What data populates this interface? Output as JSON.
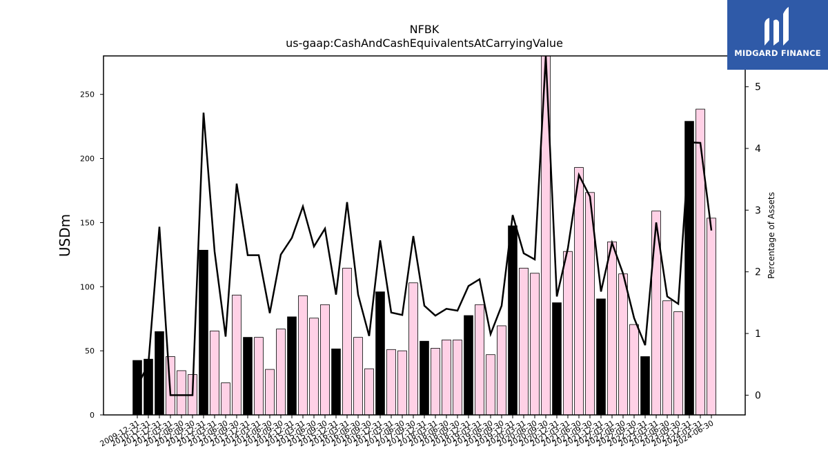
{
  "logo": {
    "text": "MIDGARD FINANCE",
    "color": "#2f5aa8"
  },
  "chart_data": {
    "type": "bar",
    "title": "NFBK",
    "subtitle": "us-gaap:CashAndCashEquivalentsAtCarryingValue",
    "ylabel": "USDm",
    "y2label": "Percentage of Assets",
    "ylim": [
      0,
      280
    ],
    "y2lim": [
      -0.32,
      5.5
    ],
    "yticks": [
      0,
      50,
      100,
      150,
      200,
      250
    ],
    "y2ticks": [
      0,
      1,
      2,
      3,
      4,
      5
    ],
    "categories": [
      "2009-12-31",
      "2010-12-31",
      "2011-12-31",
      "2012-03-31",
      "2012-06-30",
      "2012-09-30",
      "2012-12-31",
      "2013-03-31",
      "2013-06-30",
      "2013-09-30",
      "2013-12-31",
      "2014-03-31",
      "2014-06-30",
      "2014-09-30",
      "2014-12-31",
      "2015-03-31",
      "2015-06-30",
      "2015-09-30",
      "2015-12-31",
      "2016-03-31",
      "2016-06-30",
      "2016-09-30",
      "2016-12-31",
      "2017-03-31",
      "2017-06-30",
      "2017-09-30",
      "2017-12-31",
      "2018-03-31",
      "2018-06-30",
      "2018-09-30",
      "2018-12-31",
      "2019-03-31",
      "2019-06-30",
      "2019-09-30",
      "2019-12-31",
      "2020-03-31",
      "2020-06-30",
      "2020-09-30",
      "2020-12-31",
      "2021-03-31",
      "2021-06-30",
      "2021-09-30",
      "2021-12-31",
      "2022-03-31",
      "2022-06-30",
      "2022-09-30",
      "2022-12-31",
      "2023-03-31",
      "2023-06-30",
      "2023-09-30",
      "2023-12-31",
      "2024-03-31",
      "2024-06-30"
    ],
    "xtick_labels": [
      "2009-12-31",
      "2010-12-31",
      "2011-12-31",
      "2012-03-31",
      "2012-06-30",
      "2012-09-30",
      "2012-12-31",
      "2013-03-31",
      "2013-06-30",
      "2013-09-30",
      "2013-12-31",
      "2014-03-31",
      "2014-06-30",
      "2014-09-30",
      "2014-12-31",
      "2015-03-31",
      "2015-06-30",
      "2015-09-30",
      "2015-12-31",
      "2016-03-31",
      "2016-06-30",
      "2016-09-30",
      "2016-12-31",
      "2017-03-31",
      "2017-06-30",
      "2017-09-30",
      "2017-12-31",
      "2018-03-31",
      "2018-06-30",
      "2018-09-30",
      "2018-12-31",
      "2019-03-31",
      "2019-06-30",
      "2019-09-30",
      "2019-12-31",
      "2020-03-31",
      "2020-06-30",
      "2020-09-30",
      "2020-12-31",
      "2021-03-31",
      "2021-06-30",
      "2021-09-30",
      "2021-12-31",
      "2022-03-31",
      "2022-06-30",
      "2022-09-30",
      "2022-12-31",
      "2023-03-31",
      "2023-06-30",
      "2023-09-30",
      "2023-12-31",
      "2024-03-31",
      "2024-06-30"
    ],
    "series": [
      {
        "type": "bar",
        "axis": "left",
        "values": [
          42.5,
          43.5,
          65,
          45.5,
          34.5,
          31.5,
          128.5,
          65.5,
          25,
          93.5,
          60.5,
          60.5,
          35.5,
          67,
          76.5,
          93,
          75.5,
          86,
          51.5,
          114.5,
          60.5,
          36,
          96,
          51,
          50,
          103,
          57.5,
          52,
          58.5,
          58.5,
          77.5,
          86,
          47,
          69.5,
          147.5,
          114.5,
          110.5,
          285,
          87.5,
          127.5,
          193,
          173.5,
          90.5,
          135,
          110,
          70.5,
          45.5,
          159,
          89,
          80.5,
          229,
          238.5,
          153.5
        ],
        "colors": [
          "#000000",
          "#000000",
          "#000000",
          "#ffd1e6",
          "#ffd1e6",
          "#ffd1e6",
          "#000000",
          "#ffd1e6",
          "#ffd1e6",
          "#ffd1e6",
          "#000000",
          "#ffd1e6",
          "#ffd1e6",
          "#ffd1e6",
          "#000000",
          "#ffd1e6",
          "#ffd1e6",
          "#ffd1e6",
          "#000000",
          "#ffd1e6",
          "#ffd1e6",
          "#ffd1e6",
          "#000000",
          "#ffd1e6",
          "#ffd1e6",
          "#ffd1e6",
          "#000000",
          "#ffd1e6",
          "#ffd1e6",
          "#ffd1e6",
          "#000000",
          "#ffd1e6",
          "#ffd1e6",
          "#ffd1e6",
          "#000000",
          "#ffd1e6",
          "#ffd1e6",
          "#ffd1e6",
          "#000000",
          "#ffd1e6",
          "#ffd1e6",
          "#ffd1e6",
          "#000000",
          "#ffd1e6",
          "#ffd1e6",
          "#ffd1e6",
          "#000000",
          "#ffd1e6",
          "#ffd1e6",
          "#ffd1e6",
          "#000000",
          "#ffd1e6",
          "#ffd1e6"
        ]
      },
      {
        "type": "line",
        "axis": "right",
        "color": "#000000",
        "values": [
          0.15,
          0.5,
          2.73,
          0,
          0,
          0,
          4.58,
          2.33,
          0.95,
          3.43,
          2.27,
          2.27,
          1.33,
          2.28,
          2.55,
          3.06,
          2.41,
          2.7,
          1.63,
          3.13,
          1.63,
          0.96,
          2.51,
          1.34,
          1.3,
          2.58,
          1.45,
          1.29,
          1.4,
          1.37,
          1.77,
          1.88,
          0.99,
          1.45,
          2.92,
          2.3,
          2.2,
          5.58,
          1.6,
          2.38,
          3.57,
          3.22,
          1.68,
          2.47,
          1.97,
          1.25,
          0.81,
          2.8,
          1.6,
          1.48,
          4.1,
          4.09,
          2.67
        ]
      }
    ]
  }
}
